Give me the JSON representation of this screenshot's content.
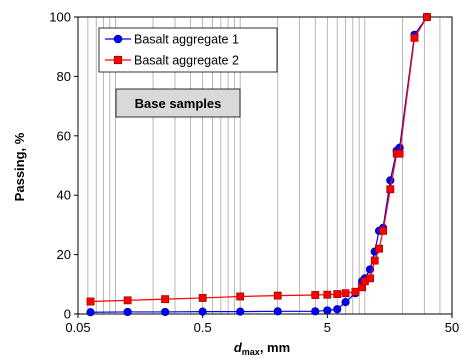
{
  "chart_data": {
    "type": "line",
    "xscale": "log",
    "xlabel_main": "d",
    "xlabel_sub": "max",
    "xlabel_rest": ", mm",
    "ylabel": "Passing, %",
    "xlim": [
      0.05,
      50
    ],
    "ylim": [
      0,
      100
    ],
    "x_ticks": [
      0.05,
      0.5,
      5,
      50
    ],
    "x_tick_labels": [
      "0.05",
      "0.5",
      "5",
      "50"
    ],
    "y_ticks": [
      0,
      20,
      40,
      60,
      80,
      100
    ],
    "y_tick_labels": [
      "0",
      "20",
      "40",
      "60",
      "80",
      "100"
    ],
    "grid": "x-minor-log",
    "legend_position": "top-left",
    "annotation": "Base samples",
    "series": [
      {
        "name": "Basalt aggregate 1",
        "color": "#0000FF",
        "marker": "circle",
        "x": [
          0.063,
          0.125,
          0.25,
          0.5,
          1,
          2,
          4,
          5,
          6,
          7,
          8.4,
          9.5,
          10,
          11,
          12,
          13,
          14,
          16,
          18,
          19,
          25,
          31.5
        ],
        "y": [
          0.6,
          0.7,
          0.7,
          0.8,
          0.8,
          0.9,
          0.9,
          1.2,
          1.6,
          4,
          7,
          11,
          12,
          15,
          21,
          28,
          29,
          45,
          55,
          56,
          94,
          100
        ]
      },
      {
        "name": "Basalt aggregate 2",
        "color": "#FF0000",
        "marker": "square",
        "x": [
          0.063,
          0.125,
          0.25,
          0.5,
          1,
          2,
          4,
          5,
          6,
          7,
          8.4,
          9.5,
          10,
          11,
          12,
          13,
          14,
          16,
          18,
          19,
          25,
          31.5
        ],
        "y": [
          4.2,
          4.6,
          5,
          5.4,
          5.9,
          6.2,
          6.4,
          6.5,
          6.7,
          7,
          7.5,
          9,
          11,
          12,
          18,
          22,
          28,
          42,
          54,
          54,
          93,
          100
        ]
      }
    ]
  }
}
